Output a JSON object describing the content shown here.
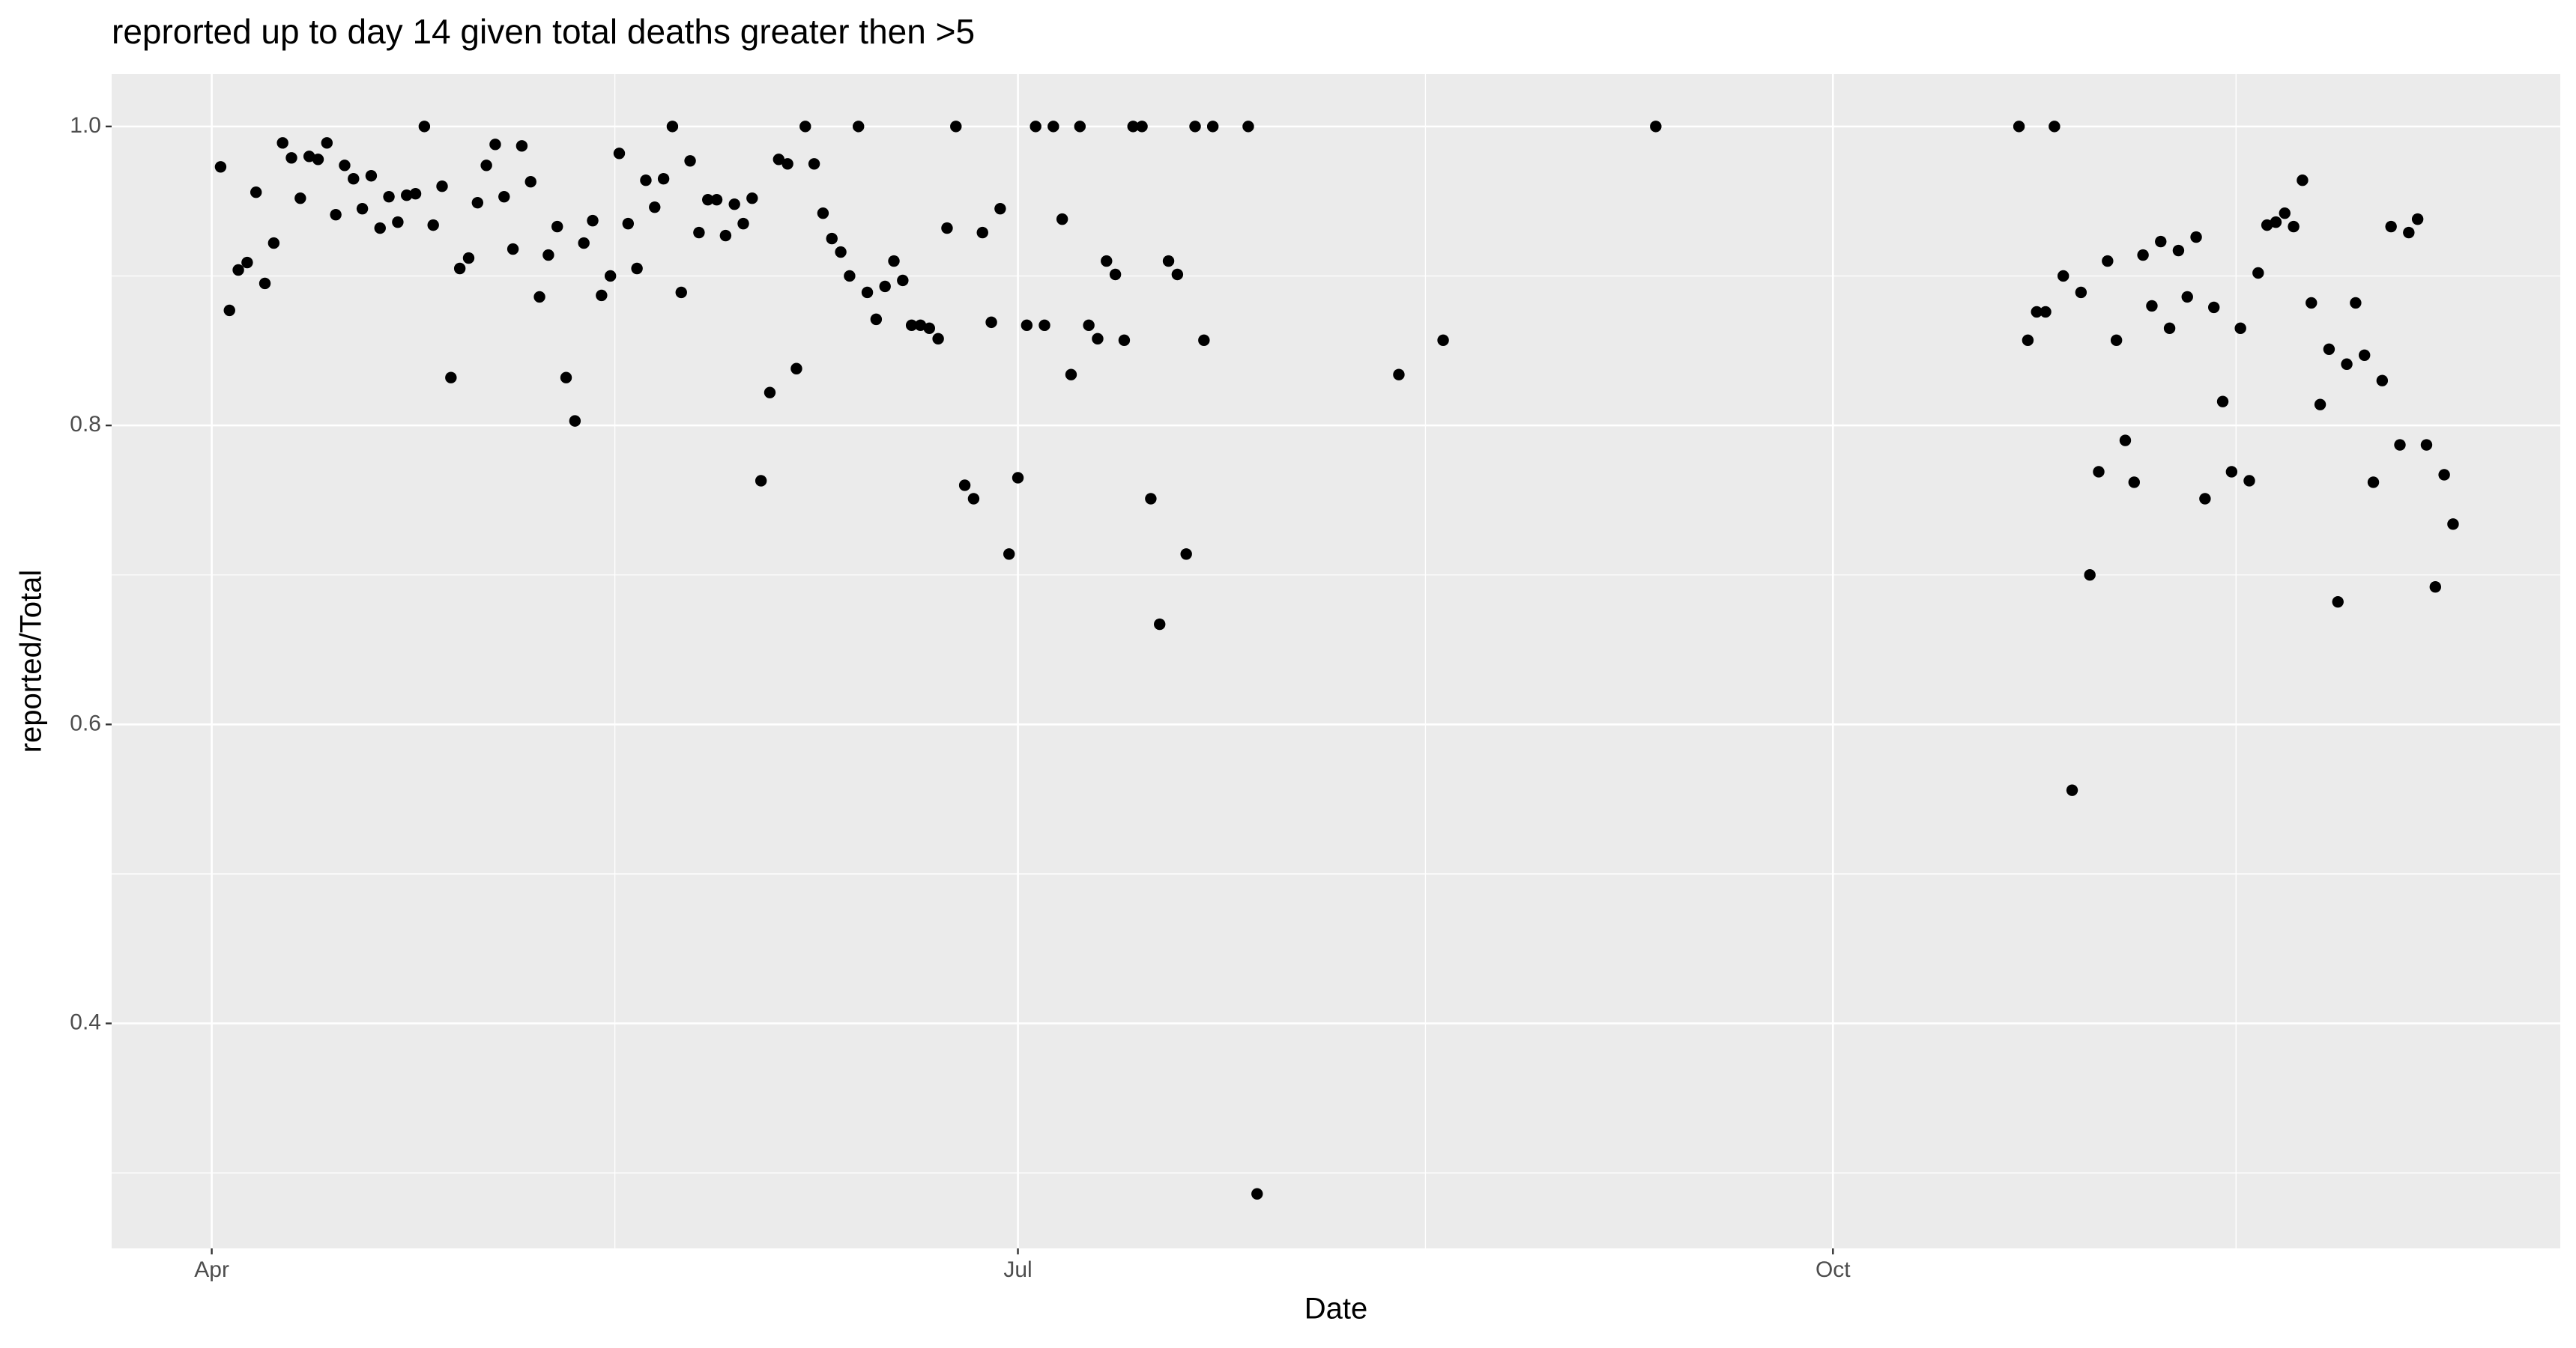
{
  "chart_data": {
    "type": "scatter",
    "title": "reprorted up to day 14 given total deaths greater then >5",
    "x_label": "Date",
    "y_label": "reported/Total",
    "x": [
      1,
      2,
      3,
      4,
      5,
      6,
      7,
      8,
      9,
      10,
      11,
      12,
      13,
      14,
      15,
      16,
      17,
      18,
      19,
      20,
      21,
      22,
      23,
      24,
      25,
      26,
      27,
      28,
      29,
      30,
      31,
      32,
      33,
      34,
      35,
      36,
      37,
      38,
      39,
      40,
      41,
      42,
      43,
      44,
      45,
      46,
      47,
      48,
      49,
      50,
      51,
      52,
      53,
      54,
      55,
      56,
      57,
      58,
      59,
      60,
      61,
      62,
      63,
      64,
      65,
      66,
      67,
      68,
      69,
      70,
      71,
      72,
      73,
      74,
      75,
      76,
      77,
      78,
      79,
      80,
      81,
      82,
      83,
      84,
      85,
      86,
      87,
      88,
      89,
      90,
      91,
      92,
      93,
      94,
      95,
      96,
      97,
      98,
      99,
      100,
      101,
      102,
      103,
      104,
      105,
      106,
      107,
      108,
      109,
      110,
      111,
      112,
      113,
      117,
      118,
      134,
      139,
      163,
      204,
      205,
      206,
      207,
      208,
      209,
      210,
      211,
      212,
      213,
      214,
      215,
      216,
      217,
      218,
      219,
      220,
      221,
      222,
      223,
      224,
      225,
      226,
      227,
      228,
      229,
      230,
      231,
      232,
      233,
      234,
      235,
      236,
      237,
      238,
      239,
      240,
      241,
      242,
      243,
      244,
      245,
      246,
      247,
      248,
      249,
      250,
      251,
      252,
      253
    ],
    "y": [
      0.973,
      0.877,
      0.904,
      0.909,
      0.956,
      0.895,
      0.922,
      0.989,
      0.979,
      0.952,
      0.98,
      0.978,
      0.989,
      0.941,
      0.974,
      0.965,
      0.945,
      0.967,
      0.932,
      0.953,
      0.936,
      0.954,
      0.955,
      1,
      0.934,
      0.96,
      0.832,
      0.905,
      0.912,
      0.949,
      0.974,
      0.988,
      0.953,
      0.918,
      0.987,
      0.963,
      0.886,
      0.914,
      0.933,
      0.832,
      0.803,
      0.922,
      0.937,
      0.887,
      0.9,
      0.982,
      0.935,
      0.905,
      0.964,
      0.946,
      0.965,
      1,
      0.889,
      0.977,
      0.929,
      0.951,
      0.951,
      0.927,
      0.948,
      0.935,
      0.952,
      0.763,
      0.822,
      0.978,
      0.975,
      0.838,
      1,
      0.975,
      0.942,
      0.925,
      0.916,
      0.9,
      1,
      0.889,
      0.871,
      0.893,
      0.91,
      0.897,
      0.867,
      0.867,
      0.865,
      0.858,
      0.932,
      1,
      0.76,
      0.751,
      0.929,
      0.869,
      0.945,
      0.714,
      0.765,
      0.867,
      1,
      0.867,
      1,
      0.938,
      0.834,
      1,
      0.867,
      0.858,
      0.91,
      0.901,
      0.857,
      1,
      1,
      0.751,
      0.667,
      0.91,
      0.901,
      0.714,
      1,
      0.857,
      1,
      1,
      0.286,
      0.834,
      0.857,
      1,
      1,
      0.857,
      0.876,
      0.876,
      1,
      0.9,
      0.556,
      0.889,
      0.7,
      0.769,
      0.91,
      0.857,
      0.79,
      0.762,
      0.914,
      0.88,
      0.923,
      0.865,
      0.917,
      0.886,
      0.926,
      0.751,
      0.879,
      0.816,
      0.769,
      0.865,
      0.763,
      0.902,
      0.934,
      0.936,
      0.942,
      0.933,
      0.964,
      0.882,
      0.814,
      0.851,
      0.682,
      0.841,
      0.882,
      0.847,
      0.762,
      0.83,
      0.933,
      0.787,
      0.929,
      0.938,
      0.787,
      0.692,
      0.767,
      0.734
    ],
    "color": "#000000",
    "xlim": [
      -11.3,
      265.1
    ],
    "xticks": [
      {
        "value": 0,
        "label": "Apr"
      },
      {
        "value": 91,
        "label": "Jul"
      },
      {
        "value": 183,
        "label": "Oct"
      }
    ],
    "ylim": [
      0.2495,
      1.035
    ],
    "yticks": [
      0.4,
      0.6,
      0.8,
      {
        "value": 1,
        "label": "1.0"
      }
    ],
    "grid": true
  }
}
